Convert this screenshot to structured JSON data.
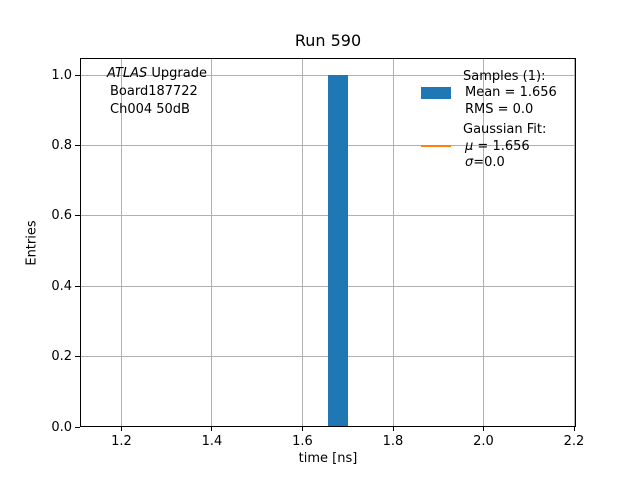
{
  "figure": {
    "title": "Run 590"
  },
  "annotation": {
    "experiment_italic": "ATLAS",
    "experiment_rest": " Upgrade",
    "board": "Board187722",
    "channel": "Ch004 50dB"
  },
  "legend": {
    "samples_header": "Samples (1):",
    "mean_label": "Mean = 1.656",
    "rms_label": "RMS = 0.0",
    "gaussian_header": "Gaussian Fit:",
    "mu_symbol": "μ",
    "mu_rest": " = 1.656",
    "sigma_symbol": "σ",
    "sigma_rest": "=0.0"
  },
  "chart_data": {
    "type": "bar",
    "title": "Run 590",
    "xlabel": "time [ns]",
    "ylabel": "Entries",
    "xlim": [
      1.1083,
      2.2044
    ],
    "ylim": [
      0,
      1.0483
    ],
    "xticks": [
      1.2,
      1.4,
      1.6,
      1.8,
      2.0,
      2.2
    ],
    "xtick_labels": [
      "1.2",
      "1.4",
      "1.6",
      "1.8",
      "2.0",
      "2.2"
    ],
    "yticks": [
      0.0,
      0.2,
      0.4,
      0.6,
      0.8,
      1.0
    ],
    "ytick_labels": [
      "0.0",
      "0.2",
      "0.4",
      "0.6",
      "0.8",
      "1.0"
    ],
    "grid": true,
    "legend_position": "upper right",
    "series": [
      {
        "name": "Samples (1)",
        "type": "bar",
        "color": "#1f77b4",
        "bars": [
          {
            "x0": 1.656,
            "x1": 1.7,
            "height": 1.0
          }
        ],
        "stats": {
          "mean": 1.656,
          "rms": 0.0,
          "entries": 1
        }
      },
      {
        "name": "Gaussian Fit",
        "type": "line",
        "color": "#ff7f0e",
        "params": {
          "mu": 1.656,
          "sigma": 0.0
        }
      }
    ],
    "colors": {
      "grid": "#b0b0b0",
      "spine": "#000000",
      "background": "#ffffff"
    }
  }
}
